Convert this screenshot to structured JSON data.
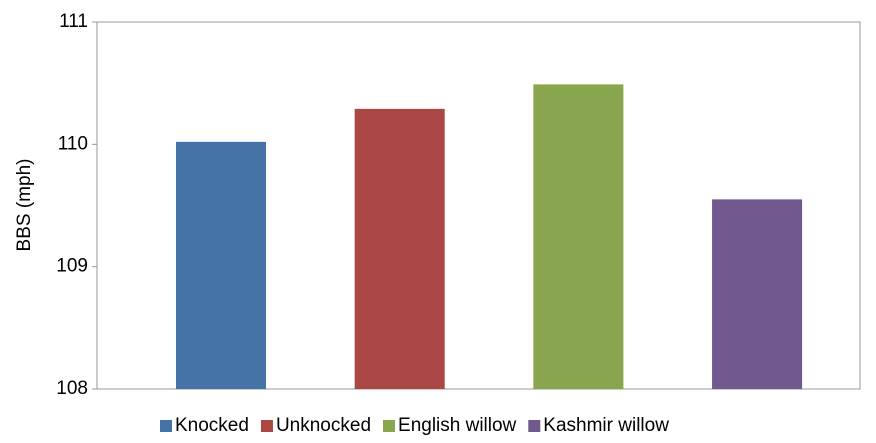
{
  "chart_data": {
    "type": "bar",
    "y_label": "BBS (mph)",
    "categories": [
      null
    ],
    "series": [
      {
        "name": "Knocked",
        "color": "#4572a7",
        "values": [
          110.02
        ]
      },
      {
        "name": "Unknocked",
        "color": "#aa4643",
        "values": [
          110.29
        ]
      },
      {
        "name": "English willow",
        "color": "#89a54e",
        "values": [
          110.49
        ]
      },
      {
        "name": "Kashmir willow",
        "color": "#71588f",
        "values": [
          109.55
        ]
      }
    ],
    "ylim": [
      108,
      111
    ],
    "yticks": [
      108,
      109,
      110,
      111
    ],
    "grid": false,
    "legend": "bottom"
  }
}
